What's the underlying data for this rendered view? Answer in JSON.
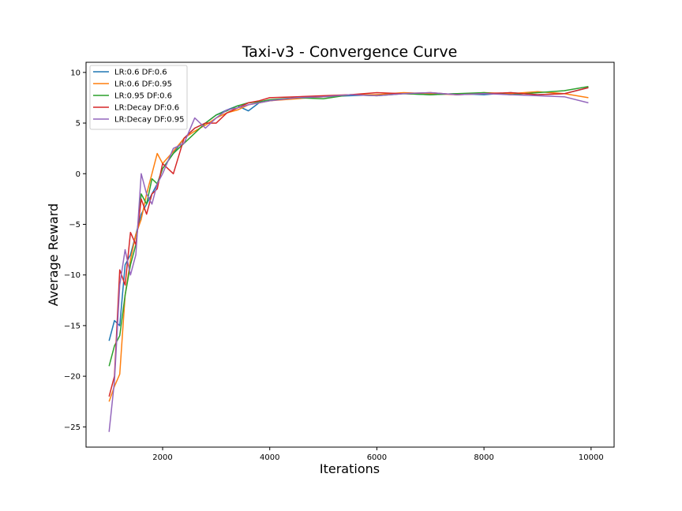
{
  "chart_data": {
    "type": "line",
    "title": "Taxi-v3 - Convergence Curve",
    "xlabel": "Iterations",
    "ylabel": "Average Reward",
    "xlim": [
      570,
      10430
    ],
    "ylim": [
      -27,
      11
    ],
    "xticks": [
      2000,
      4000,
      6000,
      8000,
      10000
    ],
    "yticks": [
      10,
      5,
      0,
      -5,
      -10,
      -15,
      -20,
      -25
    ],
    "grid": false,
    "legend_position": "top-left",
    "series": [
      {
        "name": "LR:0.6 DF:0.6",
        "color": "#1f77b4",
        "x": [
          1000,
          1100,
          1200,
          1300,
          1400,
          1500,
          1600,
          1700,
          1800,
          1900,
          2000,
          2200,
          2400,
          2600,
          2800,
          3000,
          3200,
          3400,
          3600,
          3800,
          4000,
          4500,
          5000,
          5500,
          6000,
          6500,
          7000,
          7500,
          8000,
          8500,
          9000,
          9500,
          9950
        ],
        "y": [
          -16.5,
          -14.5,
          -15,
          -9,
          -8,
          -6,
          -4,
          -3,
          -2,
          -1,
          0.5,
          2,
          3.5,
          4.5,
          5,
          5.8,
          6.3,
          6.7,
          6.2,
          7,
          7.2,
          7.5,
          7.6,
          7.7,
          7.8,
          7.9,
          7.8,
          7.9,
          7.8,
          8,
          7.8,
          7.9,
          8.5
        ]
      },
      {
        "name": "LR:0.6 DF:0.95",
        "color": "#ff7f0e",
        "x": [
          1000,
          1100,
          1200,
          1300,
          1400,
          1500,
          1600,
          1700,
          1800,
          1900,
          2000,
          2200,
          2400,
          2600,
          2800,
          3000,
          3200,
          3400,
          3600,
          3800,
          4000,
          4500,
          5000,
          5500,
          6000,
          6500,
          7000,
          7500,
          8000,
          8500,
          9000,
          9500,
          9950
        ],
        "y": [
          -22.5,
          -21,
          -19.8,
          -12,
          -8.5,
          -6,
          -4.5,
          -2,
          0,
          2,
          1,
          2.2,
          3.5,
          4.2,
          4.8,
          5.5,
          6,
          6.3,
          6.8,
          7,
          7.2,
          7.4,
          7.6,
          7.8,
          7.8,
          8,
          7.9,
          7.8,
          8,
          7.9,
          8.1,
          7.9,
          7.5
        ]
      },
      {
        "name": "LR:0.95 DF:0.6",
        "color": "#2ca02c",
        "x": [
          1000,
          1100,
          1200,
          1300,
          1400,
          1500,
          1600,
          1700,
          1800,
          1900,
          2000,
          2200,
          2400,
          2600,
          2800,
          3000,
          3200,
          3400,
          3600,
          3800,
          4000,
          4500,
          5000,
          5500,
          6000,
          6500,
          7000,
          7500,
          8000,
          8500,
          9000,
          9500,
          9950
        ],
        "y": [
          -19,
          -17,
          -16,
          -12,
          -9,
          -7,
          -2,
          -3,
          -0.5,
          -1,
          0.5,
          2,
          3,
          4,
          5,
          5.8,
          6.2,
          6.7,
          7,
          7.1,
          7.3,
          7.5,
          7.4,
          7.8,
          7.7,
          7.9,
          7.8,
          7.9,
          8,
          7.8,
          8,
          8.2,
          8.6
        ]
      },
      {
        "name": "LR:Decay DF:0.6",
        "color": "#d62728",
        "x": [
          1000,
          1100,
          1200,
          1300,
          1400,
          1500,
          1600,
          1700,
          1800,
          1900,
          2000,
          2200,
          2400,
          2600,
          2800,
          3000,
          3200,
          3400,
          3600,
          3800,
          4000,
          4500,
          5000,
          5500,
          6000,
          6500,
          7000,
          7500,
          8000,
          8500,
          9000,
          9500,
          9950
        ],
        "y": [
          -22,
          -20,
          -9.5,
          -11,
          -5.8,
          -7,
          -2.5,
          -4,
          -2,
          -1.5,
          1,
          0,
          3.5,
          4.5,
          5,
          5,
          6,
          6.5,
          7,
          7.2,
          7.5,
          7.6,
          7.7,
          7.8,
          8,
          7.9,
          8,
          7.8,
          7.9,
          8,
          7.8,
          7.9,
          8.5
        ]
      },
      {
        "name": "LR:Decay DF:0.95",
        "color": "#9467bd",
        "x": [
          1000,
          1100,
          1200,
          1300,
          1400,
          1500,
          1600,
          1700,
          1800,
          1900,
          2000,
          2200,
          2400,
          2600,
          2800,
          3000,
          3200,
          3400,
          3600,
          3800,
          4000,
          4500,
          5000,
          5500,
          6000,
          6500,
          7000,
          7500,
          8000,
          8500,
          9000,
          9500,
          9950
        ],
        "y": [
          -25.5,
          -20.5,
          -11,
          -7.5,
          -10,
          -8,
          0,
          -2,
          -3,
          -1,
          0,
          2.5,
          3,
          5.5,
          4.5,
          5.5,
          6.3,
          6.5,
          6.8,
          7,
          7.2,
          7.5,
          7.6,
          7.8,
          7.7,
          7.9,
          8,
          7.8,
          7.9,
          7.8,
          7.7,
          7.6,
          7
        ]
      }
    ]
  }
}
